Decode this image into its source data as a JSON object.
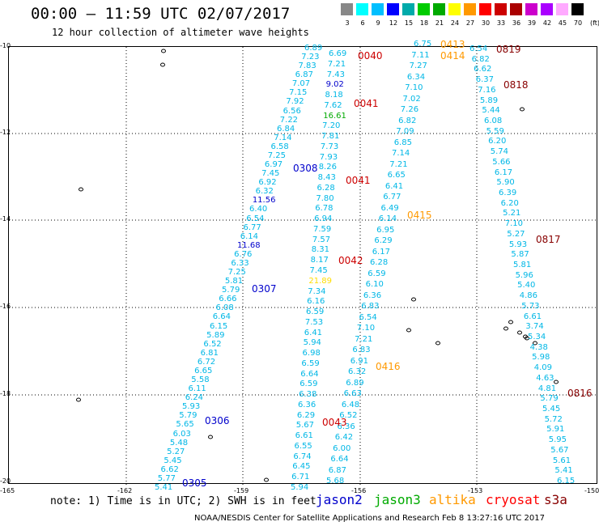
{
  "title": "00:00 – 11:59 UTC 02/07/2017",
  "subtitle": "12 hour collection of altimeter wave heights",
  "legend": {
    "colors": [
      "#888888",
      "#00ffff",
      "#00bfff",
      "#0000ff",
      "#00aaaa",
      "#00cc00",
      "#00aa00",
      "#ffff00",
      "#ff9900",
      "#ff0000",
      "#cc0000",
      "#aa0000",
      "#cc00cc",
      "#aa00ff",
      "#ffaaff",
      "#000000"
    ],
    "labels": [
      "3",
      "6",
      "9",
      "12",
      "15",
      "18",
      "21",
      "24",
      "27",
      "30",
      "33",
      "36",
      "39",
      "42",
      "45",
      "70"
    ],
    "unit": "(ft)"
  },
  "axes": {
    "lat_ticks": [
      "-10",
      "-12",
      "-14",
      "-16",
      "-18",
      "-20"
    ],
    "lon_ticks": [
      "-165",
      "-162",
      "-159",
      "-156",
      "-153",
      "-150"
    ]
  },
  "passes": [
    {
      "id": "0040",
      "color": "#cc0000"
    },
    {
      "id": "0413",
      "color": "#ff9900"
    },
    {
      "id": "0414",
      "color": "#ff9900"
    },
    {
      "id": "0819",
      "color": "#880000"
    },
    {
      "id": "0818",
      "color": "#880000"
    },
    {
      "id": "0041",
      "color": "#cc0000"
    },
    {
      "id": "0308",
      "color": "#0000cc"
    },
    {
      "id": "0041",
      "color": "#cc0000"
    },
    {
      "id": "0415",
      "color": "#ff9900"
    },
    {
      "id": "0817",
      "color": "#880000"
    },
    {
      "id": "0042",
      "color": "#cc0000"
    },
    {
      "id": "0307",
      "color": "#0000cc"
    },
    {
      "id": "0416",
      "color": "#ff9900"
    },
    {
      "id": "0816",
      "color": "#880000"
    },
    {
      "id": "0306",
      "color": "#0000cc"
    },
    {
      "id": "0043",
      "color": "#cc0000"
    },
    {
      "id": "0305",
      "color": "#0000cc"
    }
  ],
  "tracks": {
    "t1": [
      "6.89",
      "7.23",
      "7.83",
      "6.87",
      "7.07",
      "7.15",
      "7.92",
      "6.56",
      "7.22",
      "6.84",
      "7.14",
      "6.58",
      "7.25",
      "6.97",
      "7.45",
      "6.92",
      "6.32",
      "11.56",
      "6.40",
      "6.54",
      "6.77",
      "6.14",
      "11.68",
      "6.76",
      "6.33",
      "7.25",
      "5.81",
      "5.79",
      "6.66",
      "6.08",
      "6.64",
      "6.15",
      "5.89",
      "6.52",
      "6.81",
      "6.72",
      "6.65",
      "5.58",
      "6.11",
      "6.24",
      "5.93",
      "5.79",
      "5.65",
      "6.03",
      "5.48",
      "5.27",
      "5.45",
      "6.62",
      "5.77",
      "5.41"
    ],
    "t2": [
      "6.69",
      "7.21",
      "7.43",
      "9.02",
      "8.18",
      "7.62",
      "16.61",
      "7.20",
      "7.81",
      "7.73",
      "7.93",
      "8.26",
      "8.43",
      "6.28",
      "7.80",
      "6.78",
      "6.94",
      "7.59",
      "7.57",
      "8.31",
      "8.17",
      "7.45",
      "21.89",
      "7.34",
      "6.16",
      "6.59",
      "7.53",
      "6.41",
      "5.94",
      "6.98",
      "6.59",
      "6.64",
      "6.59",
      "6.38",
      "6.36",
      "6.29",
      "5.67",
      "6.61",
      "6.55",
      "6.74",
      "6.45",
      "6.71",
      "5.94"
    ],
    "t3": [
      "6.75",
      "7.11",
      "7.27",
      "6.34",
      "7.10",
      "7.02",
      "7.26",
      "6.82",
      "7.09",
      "6.85",
      "7.14",
      "7.21",
      "6.65",
      "6.41",
      "6.77",
      "6.49",
      "6.14",
      "6.95",
      "6.29",
      "6.17",
      "6.28",
      "6.59",
      "6.10",
      "6.36",
      "6.83",
      "6.54",
      "7.10",
      "7.21",
      "6.83",
      "6.91",
      "6.32",
      "6.89",
      "6.63",
      "6.48",
      "6.52",
      "6.36",
      "6.42",
      "6.00",
      "6.64",
      "6.87",
      "5.68"
    ],
    "t4": [
      "6.54",
      "6.82",
      "6.62",
      "6.37",
      "7.16",
      "5.89",
      "5.44",
      "6.08",
      "5.59",
      "6.20",
      "5.74",
      "5.66",
      "6.17",
      "5.90",
      "6.39",
      "6.20",
      "5.21",
      "7.10",
      "5.27",
      "5.93",
      "5.87",
      "5.81",
      "5.96",
      "5.40",
      "4.86",
      "5.73",
      "6.61",
      "3.74",
      "5.34",
      "4.38",
      "5.98",
      "4.09",
      "4.63",
      "4.81",
      "5.79",
      "5.45",
      "5.72",
      "5.91",
      "5.95",
      "5.67",
      "5.61",
      "5.41",
      "6.15"
    ]
  },
  "footnote": "note: 1) Time is in UTC; 2) SWH is in feet",
  "satellites": [
    {
      "name": "jason2",
      "color": "#0000cc"
    },
    {
      "name": "jason3",
      "color": "#00aa00"
    },
    {
      "name": "altika",
      "color": "#ff9900"
    },
    {
      "name": "cryosat",
      "color": "#ff0000"
    },
    {
      "name": "s3a",
      "color": "#880000"
    }
  ],
  "credit": "NOAA/NESDIS Center for Satellite Applications and Research   Feb  8 13:27:16 UTC 2017"
}
